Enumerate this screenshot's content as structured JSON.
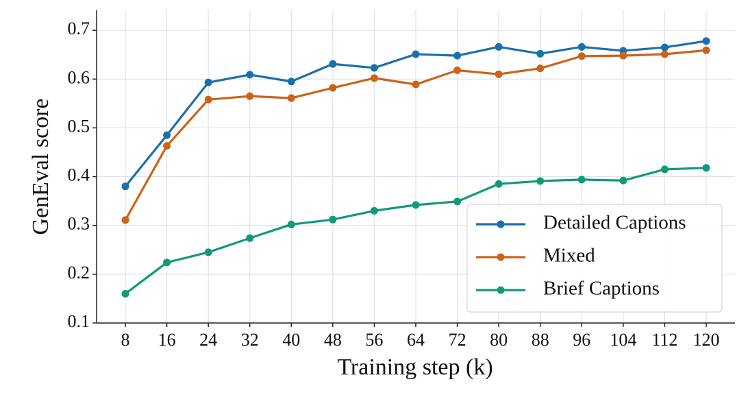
{
  "chart_data": {
    "type": "line",
    "x_label": "Training step (k)",
    "y_label": "GenEval score",
    "x": [
      8,
      16,
      24,
      32,
      40,
      48,
      56,
      64,
      72,
      80,
      88,
      96,
      104,
      112,
      120
    ],
    "series": [
      {
        "name": "Detailed Captions",
        "color": "#1a70aa",
        "values": [
          0.38,
          0.485,
          0.593,
          0.609,
          0.595,
          0.631,
          0.623,
          0.651,
          0.648,
          0.666,
          0.652,
          0.666,
          0.658,
          0.665,
          0.678
        ]
      },
      {
        "name": "Mixed",
        "color": "#cc6319",
        "values": [
          0.311,
          0.463,
          0.558,
          0.565,
          0.561,
          0.582,
          0.602,
          0.589,
          0.618,
          0.61,
          0.622,
          0.647,
          0.648,
          0.651,
          0.659
        ]
      },
      {
        "name": "Brief Captions",
        "color": "#12997a",
        "values": [
          0.16,
          0.224,
          0.245,
          0.274,
          0.302,
          0.312,
          0.33,
          0.342,
          0.349,
          0.385,
          0.391,
          0.394,
          0.392,
          0.415,
          0.418
        ]
      }
    ],
    "xlim": [
      2.45,
      125.55
    ],
    "ylim": [
      0.1,
      0.741
    ],
    "xticks": [
      8,
      16,
      24,
      32,
      40,
      48,
      56,
      64,
      72,
      80,
      88,
      96,
      104,
      112,
      120
    ],
    "yticks": [
      0.1,
      0.2,
      0.3,
      0.4,
      0.5,
      0.6,
      0.7
    ],
    "grid": true,
    "legend": "lower right"
  }
}
